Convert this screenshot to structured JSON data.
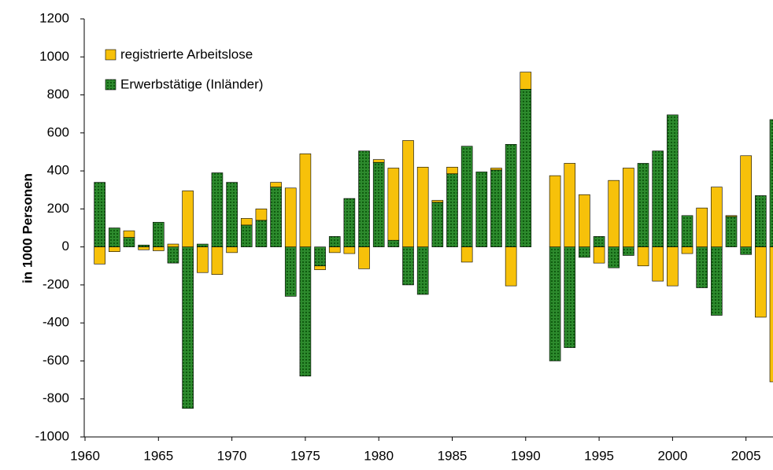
{
  "chart_data": {
    "type": "bar",
    "stacked": true,
    "y_label": "in 1000 Personen",
    "x": [
      1960,
      1961,
      1962,
      1963,
      1964,
      1965,
      1966,
      1967,
      1968,
      1969,
      1970,
      1971,
      1972,
      1973,
      1974,
      1975,
      1976,
      1977,
      1978,
      1979,
      1980,
      1981,
      1982,
      1983,
      1984,
      1985,
      1986,
      1987,
      1988,
      1989,
      1990,
      1991,
      1992,
      1993,
      1994,
      1995,
      1996,
      1997,
      1998,
      1999,
      2000,
      2001,
      2002,
      2003,
      2004,
      2005,
      2006,
      2007
    ],
    "series": [
      {
        "name": "registrierte Arbeitslose",
        "color": "#f7c10a",
        "values": [
          null,
          -90,
          -25,
          35,
          -15,
          -20,
          15,
          295,
          -135,
          -145,
          -30,
          35,
          60,
          25,
          310,
          490,
          -20,
          -30,
          -35,
          -115,
          15,
          380,
          560,
          420,
          10,
          35,
          -80,
          0,
          10,
          -205,
          90,
          null,
          375,
          440,
          275,
          -85,
          350,
          415,
          -100,
          -180,
          -205,
          -35,
          205,
          315,
          5,
          480,
          -370,
          -710
        ]
      },
      {
        "name": "Erwerbstätige (Inländer)",
        "color": "#1f7a1f",
        "values": [
          null,
          340,
          100,
          50,
          10,
          130,
          -85,
          -850,
          15,
          390,
          340,
          115,
          140,
          315,
          -260,
          -680,
          -100,
          55,
          255,
          505,
          445,
          35,
          -200,
          -250,
          235,
          385,
          530,
          395,
          405,
          540,
          830,
          null,
          -600,
          -530,
          -55,
          55,
          -110,
          -45,
          440,
          505,
          695,
          165,
          -215,
          -360,
          160,
          -40,
          270,
          670
        ]
      }
    ],
    "xlim": [
      1960,
      2007
    ],
    "xticks": [
      1960,
      1965,
      1970,
      1975,
      1980,
      1985,
      1990,
      1995,
      2000,
      2005
    ],
    "ylim": [
      -1000,
      1200
    ],
    "yticks": [
      -1000,
      -800,
      -600,
      -400,
      -200,
      0,
      200,
      400,
      600,
      800,
      1000,
      1200
    ],
    "legend": "top-left",
    "grid": false
  }
}
